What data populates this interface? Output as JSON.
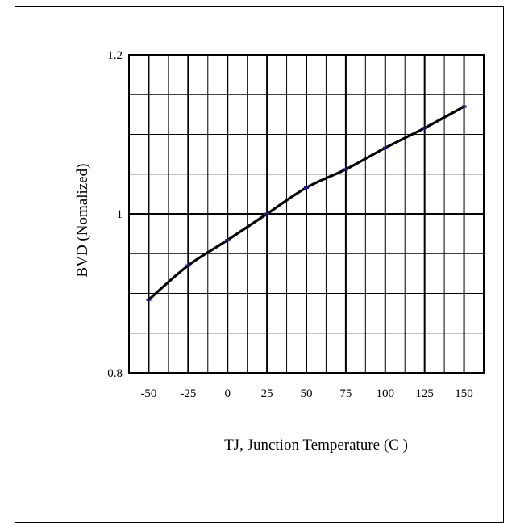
{
  "chart_data": {
    "type": "line",
    "title": "",
    "xlabel": "TJ, Junction Temperature (C )",
    "ylabel": "BVD (Nomalized)",
    "x_ticks": [
      "-50",
      "-25",
      "0",
      "25",
      "50",
      "75",
      "100",
      "125",
      "150"
    ],
    "y_ticks": [
      "0.8",
      "1",
      "1.2"
    ],
    "xlim": [
      -62.5,
      162.5
    ],
    "ylim": [
      0.8,
      1.2
    ],
    "grid": true,
    "series": [
      {
        "x": [
          -50,
          -25,
          0,
          25,
          50,
          75,
          100,
          125,
          150
        ],
        "y": [
          0.892,
          0.935,
          0.967,
          1.0,
          1.033,
          1.056,
          1.083,
          1.108,
          1.135
        ]
      }
    ],
    "line_color": "#000000",
    "marker_color": "#1a1a8c"
  }
}
